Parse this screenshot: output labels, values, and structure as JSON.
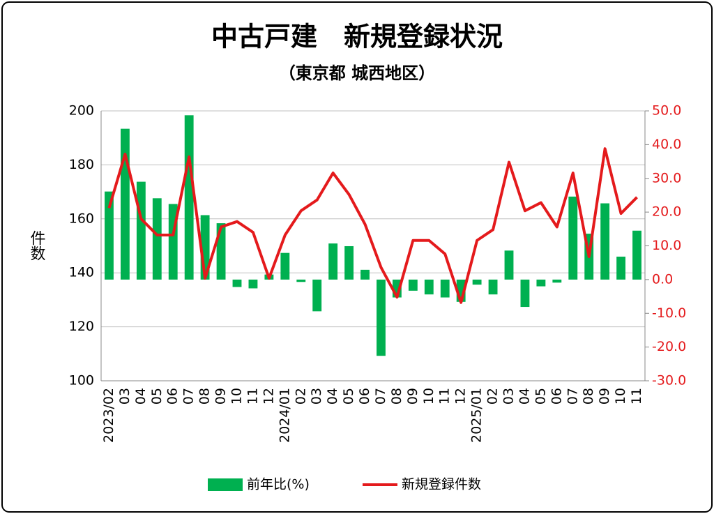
{
  "chart_data": {
    "type": "bar-line",
    "title": "中古戸建　新規登録状況",
    "subtitle": "（東京都 城西地区）",
    "y_label": "件数",
    "categories": [
      "2023/02",
      "03",
      "04",
      "05",
      "06",
      "07",
      "08",
      "09",
      "10",
      "11",
      "12",
      "2024/01",
      "02",
      "03",
      "04",
      "05",
      "06",
      "07",
      "08",
      "09",
      "10",
      "11",
      "12",
      "2025/01",
      "02",
      "03",
      "04",
      "05",
      "06",
      "07",
      "08",
      "09",
      "10",
      "11"
    ],
    "series": [
      {
        "name": "前年比(%)",
        "type": "bar",
        "axis": "y2",
        "color": "#00b050",
        "values": [
          26.1,
          44.7,
          29,
          24.1,
          22.4,
          48.7,
          19.1,
          16.7,
          -2.2,
          -2.6,
          1.5,
          7.9,
          -0.7,
          -9.4,
          10.7,
          9.9,
          2.9,
          -22.6,
          -5.3,
          -3.3,
          -4.4,
          -5.3,
          -6.6,
          -1.5,
          -4.4,
          8.6,
          -8.1,
          -2,
          -0.9,
          24.6,
          13.6,
          22.6,
          6.8,
          14.5
        ]
      },
      {
        "name": "新規登録件数",
        "type": "line",
        "axis": "y",
        "color": "#e41a1c",
        "values": [
          164,
          184,
          160,
          154,
          154,
          183,
          138,
          157,
          159,
          155,
          138,
          154,
          163,
          167,
          177,
          169,
          158,
          142,
          131,
          152,
          152,
          147,
          129,
          152,
          156,
          181,
          163,
          166,
          157,
          177,
          146,
          186,
          162,
          168
        ]
      }
    ],
    "ylim": [
      100,
      200
    ],
    "yticks": [
      100,
      120,
      140,
      160,
      180,
      200
    ],
    "y2lim": [
      -30,
      50
    ],
    "y2ticks": [
      {
        "value": -30,
        "label": "-30.0"
      },
      {
        "value": -20,
        "label": "-20.0"
      },
      {
        "value": -10,
        "label": "-10.0"
      },
      {
        "value": 0,
        "label": "0.0"
      },
      {
        "value": 10,
        "label": "10.0"
      },
      {
        "value": 20,
        "label": "20.0"
      },
      {
        "value": 30,
        "label": "30.0"
      },
      {
        "value": 40,
        "label": "40.0"
      },
      {
        "value": 50,
        "label": "50.0"
      }
    ],
    "y2_tick_color": "#e41a1c",
    "grid": true
  }
}
